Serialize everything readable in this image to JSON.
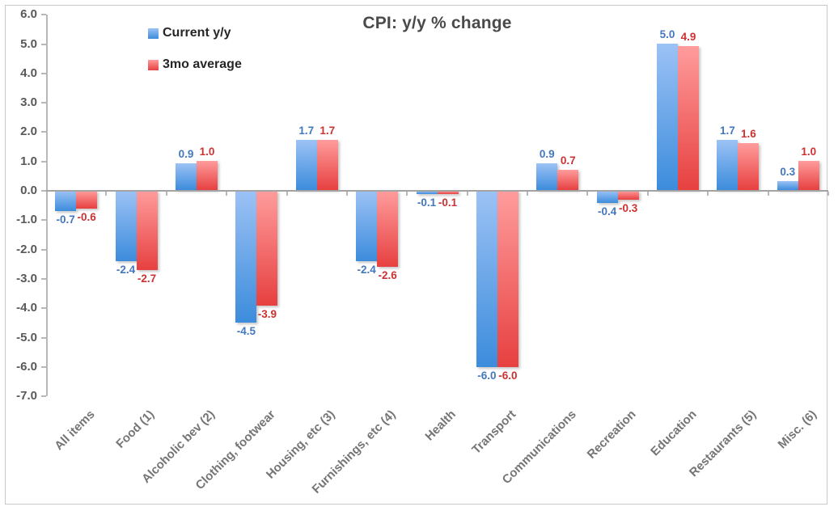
{
  "title": "CPI: y/y % change",
  "legend": {
    "items": [
      {
        "label": "Current y/y"
      },
      {
        "label": "3mo average"
      }
    ]
  },
  "colors": {
    "frame_border": "#c9c9c9",
    "axis_gray": "#b8b8b8",
    "zero_line_gray": "#a3a3a3",
    "title_gray": "#4a4a4a",
    "ytick_gray": "#595959",
    "category_gray": "#757575",
    "blue_light": "#9cc2f5",
    "blue_dark": "#3c8cdc",
    "red_light": "#ff9c9c",
    "red_dark": "#e74040",
    "blue_label": "#4377be",
    "red_label": "#cc3232"
  },
  "chart_data": {
    "type": "bar",
    "title": "CPI: y/y % change",
    "xlabel": "",
    "ylabel": "",
    "grid": false,
    "legend_position": "top-left-inside",
    "ylim": [
      -7.0,
      6.0
    ],
    "ytick_step": 1.0,
    "yticks": [
      "6.0",
      "5.0",
      "4.0",
      "3.0",
      "2.0",
      "1.0",
      "0.0",
      "-1.0",
      "-2.0",
      "-3.0",
      "-4.0",
      "-5.0",
      "-6.0",
      "-7.0"
    ],
    "categories": [
      "All items",
      "Food (1)",
      "Alcoholic bev (2)",
      "Clothing, footwear",
      "Housing, etc (3)",
      "Furnishings, etc (4)",
      "Health",
      "Transport",
      "Communications",
      "Recreation",
      "Education",
      "Restaurants (5)",
      "Misc. (6)"
    ],
    "series": [
      {
        "name": "Current y/y",
        "color_light": "#9cc2f5",
        "color_dark": "#3c8cdc",
        "label_color": "#4377be",
        "values": [
          -0.7,
          -2.4,
          0.9,
          -4.5,
          1.7,
          -2.4,
          -0.1,
          -6.0,
          0.9,
          -0.4,
          5.0,
          1.7,
          0.3
        ]
      },
      {
        "name": "3mo average",
        "color_light": "#ff9c9c",
        "color_dark": "#e74040",
        "label_color": "#cc3232",
        "values": [
          -0.6,
          -2.7,
          1.0,
          -3.9,
          1.7,
          -2.6,
          -0.1,
          -6.0,
          0.7,
          -0.3,
          4.9,
          1.6,
          1.0
        ]
      }
    ]
  }
}
